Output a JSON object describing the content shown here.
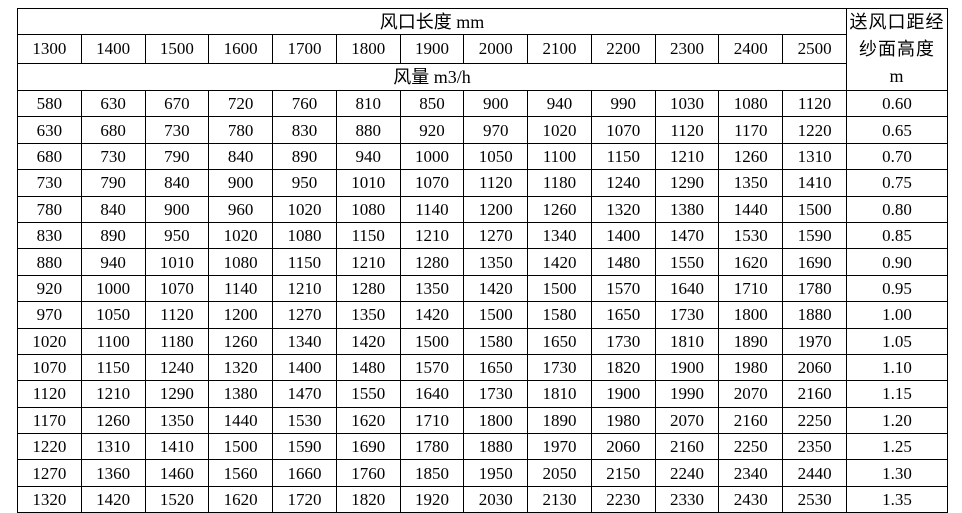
{
  "table": {
    "length_header": "风口长度 mm",
    "volume_header": "风量 m3/h",
    "height_header": "送风口距经纱面高度　 m",
    "lengths": [
      "1300",
      "1400",
      "1500",
      "1600",
      "1700",
      "1800",
      "1900",
      "2000",
      "2100",
      "2200",
      "2300",
      "2400",
      "2500"
    ],
    "rows": [
      {
        "values": [
          "580",
          "630",
          "670",
          "720",
          "760",
          "810",
          "850",
          "900",
          "940",
          "990",
          "1030",
          "1080",
          "1120"
        ],
        "height": "0.60"
      },
      {
        "values": [
          "630",
          "680",
          "730",
          "780",
          "830",
          "880",
          "920",
          "970",
          "1020",
          "1070",
          "1120",
          "1170",
          "1220"
        ],
        "height": "0.65"
      },
      {
        "values": [
          "680",
          "730",
          "790",
          "840",
          "890",
          "940",
          "1000",
          "1050",
          "1100",
          "1150",
          "1210",
          "1260",
          "1310"
        ],
        "height": "0.70"
      },
      {
        "values": [
          "730",
          "790",
          "840",
          "900",
          "950",
          "1010",
          "1070",
          "1120",
          "1180",
          "1240",
          "1290",
          "1350",
          "1410"
        ],
        "height": "0.75"
      },
      {
        "values": [
          "780",
          "840",
          "900",
          "960",
          "1020",
          "1080",
          "1140",
          "1200",
          "1260",
          "1320",
          "1380",
          "1440",
          "1500"
        ],
        "height": "0.80"
      },
      {
        "values": [
          "830",
          "890",
          "950",
          "1020",
          "1080",
          "1150",
          "1210",
          "1270",
          "1340",
          "1400",
          "1470",
          "1530",
          "1590"
        ],
        "height": "0.85"
      },
      {
        "values": [
          "880",
          "940",
          "1010",
          "1080",
          "1150",
          "1210",
          "1280",
          "1350",
          "1420",
          "1480",
          "1550",
          "1620",
          "1690"
        ],
        "height": "0.90"
      },
      {
        "values": [
          "920",
          "1000",
          "1070",
          "1140",
          "1210",
          "1280",
          "1350",
          "1420",
          "1500",
          "1570",
          "1640",
          "1710",
          "1780"
        ],
        "height": "0.95"
      },
      {
        "values": [
          "970",
          "1050",
          "1120",
          "1200",
          "1270",
          "1350",
          "1420",
          "1500",
          "1580",
          "1650",
          "1730",
          "1800",
          "1880"
        ],
        "height": "1.00"
      },
      {
        "values": [
          "1020",
          "1100",
          "1180",
          "1260",
          "1340",
          "1420",
          "1500",
          "1580",
          "1650",
          "1730",
          "1810",
          "1890",
          "1970"
        ],
        "height": "1.05"
      },
      {
        "values": [
          "1070",
          "1150",
          "1240",
          "1320",
          "1400",
          "1480",
          "1570",
          "1650",
          "1730",
          "1820",
          "1900",
          "1980",
          "2060"
        ],
        "height": "1.10"
      },
      {
        "values": [
          "1120",
          "1210",
          "1290",
          "1380",
          "1470",
          "1550",
          "1640",
          "1730",
          "1810",
          "1900",
          "1990",
          "2070",
          "2160"
        ],
        "height": "1.15"
      },
      {
        "values": [
          "1170",
          "1260",
          "1350",
          "1440",
          "1530",
          "1620",
          "1710",
          "1800",
          "1890",
          "1980",
          "2070",
          "2160",
          "2250"
        ],
        "height": "1.20"
      },
      {
        "values": [
          "1220",
          "1310",
          "1410",
          "1500",
          "1590",
          "1690",
          "1780",
          "1880",
          "1970",
          "2060",
          "2160",
          "2250",
          "2350"
        ],
        "height": "1.25"
      },
      {
        "values": [
          "1270",
          "1360",
          "1460",
          "1560",
          "1660",
          "1760",
          "1850",
          "1950",
          "2050",
          "2150",
          "2240",
          "2340",
          "2440"
        ],
        "height": "1.30"
      },
      {
        "values": [
          "1320",
          "1420",
          "1520",
          "1620",
          "1720",
          "1820",
          "1920",
          "2030",
          "2130",
          "2230",
          "2330",
          "2430",
          "2530"
        ],
        "height": "1.35"
      }
    ]
  }
}
